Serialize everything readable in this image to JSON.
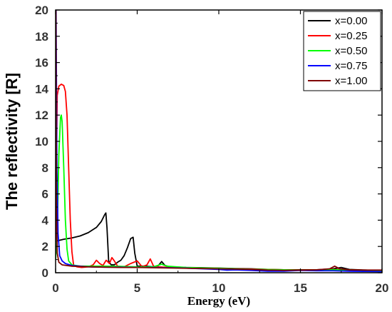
{
  "chart_data": {
    "type": "line",
    "title": "",
    "xlabel": "Energy (eV)",
    "ylabel": "The reflectivity [R]",
    "xlim": [
      0,
      20
    ],
    "ylim": [
      0,
      20
    ],
    "x_ticks": [
      0,
      5,
      10,
      15,
      20
    ],
    "y_ticks": [
      0,
      2,
      4,
      6,
      8,
      10,
      12,
      14,
      16,
      18,
      20
    ],
    "grid": false,
    "legend_position": "top-right",
    "series": [
      {
        "name": "x=0.00",
        "color": "#000000",
        "points": [
          [
            0.0,
            2.4
          ],
          [
            0.5,
            2.55
          ],
          [
            1.0,
            2.65
          ],
          [
            1.5,
            2.8
          ],
          [
            2.0,
            3.05
          ],
          [
            2.5,
            3.45
          ],
          [
            2.8,
            3.9
          ],
          [
            3.0,
            4.4
          ],
          [
            3.08,
            4.55
          ],
          [
            3.15,
            3.4
          ],
          [
            3.25,
            0.9
          ],
          [
            3.4,
            0.6
          ],
          [
            3.6,
            0.6
          ],
          [
            3.8,
            0.8
          ],
          [
            4.0,
            0.95
          ],
          [
            4.2,
            1.3
          ],
          [
            4.4,
            1.9
          ],
          [
            4.6,
            2.6
          ],
          [
            4.75,
            2.7
          ],
          [
            4.85,
            1.5
          ],
          [
            5.0,
            0.5
          ],
          [
            5.5,
            0.5
          ],
          [
            6.0,
            0.45
          ],
          [
            6.3,
            0.55
          ],
          [
            6.5,
            0.85
          ],
          [
            6.7,
            0.55
          ],
          [
            7.0,
            0.45
          ],
          [
            8.0,
            0.4
          ],
          [
            9.0,
            0.38
          ],
          [
            10.0,
            0.35
          ],
          [
            11.0,
            0.32
          ],
          [
            12.0,
            0.3
          ],
          [
            13.0,
            0.25
          ],
          [
            14.0,
            0.22
          ],
          [
            15.0,
            0.22
          ],
          [
            16.0,
            0.22
          ],
          [
            17.0,
            0.3
          ],
          [
            17.5,
            0.4
          ],
          [
            18.0,
            0.25
          ],
          [
            19.0,
            0.2
          ],
          [
            20.0,
            0.15
          ]
        ]
      },
      {
        "name": "x=0.25",
        "color": "#ff0000",
        "points": [
          [
            0.0,
            2.5
          ],
          [
            0.05,
            8.0
          ],
          [
            0.1,
            13.5
          ],
          [
            0.2,
            14.2
          ],
          [
            0.35,
            14.35
          ],
          [
            0.5,
            14.25
          ],
          [
            0.6,
            13.8
          ],
          [
            0.7,
            12.0
          ],
          [
            0.8,
            8.0
          ],
          [
            0.9,
            4.0
          ],
          [
            1.0,
            1.6
          ],
          [
            1.1,
            0.6
          ],
          [
            1.3,
            0.45
          ],
          [
            1.6,
            0.4
          ],
          [
            2.0,
            0.45
          ],
          [
            2.3,
            0.6
          ],
          [
            2.5,
            0.95
          ],
          [
            2.7,
            0.7
          ],
          [
            2.9,
            0.55
          ],
          [
            3.1,
            0.95
          ],
          [
            3.3,
            0.7
          ],
          [
            3.45,
            1.15
          ],
          [
            3.6,
            0.9
          ],
          [
            3.8,
            0.5
          ],
          [
            4.2,
            0.45
          ],
          [
            4.6,
            0.7
          ],
          [
            5.0,
            0.9
          ],
          [
            5.3,
            0.45
          ],
          [
            5.6,
            0.6
          ],
          [
            5.8,
            1.05
          ],
          [
            6.0,
            0.5
          ],
          [
            6.3,
            0.45
          ],
          [
            7.0,
            0.4
          ],
          [
            8.0,
            0.38
          ],
          [
            9.0,
            0.36
          ],
          [
            10.0,
            0.34
          ],
          [
            11.0,
            0.3
          ],
          [
            12.0,
            0.28
          ],
          [
            13.0,
            0.25
          ],
          [
            14.0,
            0.22
          ],
          [
            15.0,
            0.2
          ],
          [
            16.0,
            0.2
          ],
          [
            17.0,
            0.25
          ],
          [
            18.0,
            0.2
          ],
          [
            19.0,
            0.18
          ],
          [
            20.0,
            0.15
          ]
        ]
      },
      {
        "name": "x=0.50",
        "color": "#00ff00",
        "points": [
          [
            0.0,
            1.0
          ],
          [
            0.1,
            3.0
          ],
          [
            0.2,
            9.0
          ],
          [
            0.3,
            11.8
          ],
          [
            0.35,
            12.0
          ],
          [
            0.4,
            11.5
          ],
          [
            0.5,
            8.0
          ],
          [
            0.6,
            4.0
          ],
          [
            0.7,
            1.8
          ],
          [
            0.8,
            0.9
          ],
          [
            1.0,
            0.6
          ],
          [
            1.5,
            0.5
          ],
          [
            2.0,
            0.5
          ],
          [
            3.0,
            0.5
          ],
          [
            4.0,
            0.48
          ],
          [
            5.0,
            0.45
          ],
          [
            6.0,
            0.45
          ],
          [
            6.5,
            0.65
          ],
          [
            6.8,
            0.5
          ],
          [
            8.0,
            0.4
          ],
          [
            9.0,
            0.36
          ],
          [
            10.0,
            0.34
          ],
          [
            11.0,
            0.3
          ],
          [
            12.0,
            0.26
          ],
          [
            13.0,
            0.24
          ],
          [
            14.0,
            0.22
          ],
          [
            15.0,
            0.2
          ],
          [
            16.0,
            0.2
          ],
          [
            17.0,
            0.22
          ],
          [
            18.0,
            0.2
          ],
          [
            19.0,
            0.18
          ],
          [
            20.0,
            0.15
          ]
        ]
      },
      {
        "name": "x=0.75",
        "color": "#0000ff",
        "points": [
          [
            0.0,
            20.0
          ],
          [
            0.03,
            20.0
          ],
          [
            0.08,
            8.0
          ],
          [
            0.15,
            3.0
          ],
          [
            0.25,
            1.3
          ],
          [
            0.4,
            0.9
          ],
          [
            0.6,
            0.7
          ],
          [
            1.0,
            0.55
          ],
          [
            1.5,
            0.5
          ],
          [
            2.0,
            0.45
          ],
          [
            3.0,
            0.42
          ],
          [
            4.0,
            0.42
          ],
          [
            5.0,
            0.4
          ],
          [
            6.0,
            0.4
          ],
          [
            7.0,
            0.38
          ],
          [
            8.0,
            0.35
          ],
          [
            9.0,
            0.3
          ],
          [
            10.0,
            0.25
          ],
          [
            10.5,
            0.2
          ],
          [
            11.0,
            0.22
          ],
          [
            12.0,
            0.18
          ],
          [
            13.0,
            0.12
          ],
          [
            14.0,
            0.12
          ],
          [
            15.0,
            0.18
          ],
          [
            16.0,
            0.15
          ],
          [
            17.0,
            0.15
          ],
          [
            18.0,
            0.12
          ],
          [
            19.0,
            0.1
          ],
          [
            20.0,
            0.08
          ]
        ]
      },
      {
        "name": "x=1.00",
        "color": "#800000",
        "points": [
          [
            0.0,
            20.0
          ],
          [
            0.02,
            20.0
          ],
          [
            0.05,
            5.0
          ],
          [
            0.1,
            1.5
          ],
          [
            0.2,
            0.8
          ],
          [
            0.4,
            0.6
          ],
          [
            1.0,
            0.5
          ],
          [
            2.0,
            0.45
          ],
          [
            3.0,
            0.42
          ],
          [
            4.0,
            0.4
          ],
          [
            5.0,
            0.4
          ],
          [
            6.0,
            0.38
          ],
          [
            7.0,
            0.36
          ],
          [
            8.0,
            0.34
          ],
          [
            9.0,
            0.32
          ],
          [
            10.0,
            0.3
          ],
          [
            11.0,
            0.28
          ],
          [
            12.0,
            0.25
          ],
          [
            13.0,
            0.2
          ],
          [
            14.0,
            0.18
          ],
          [
            15.0,
            0.2
          ],
          [
            16.0,
            0.22
          ],
          [
            16.8,
            0.3
          ],
          [
            17.1,
            0.5
          ],
          [
            17.4,
            0.3
          ],
          [
            18.0,
            0.22
          ],
          [
            19.0,
            0.2
          ],
          [
            20.0,
            0.2
          ]
        ]
      }
    ]
  }
}
